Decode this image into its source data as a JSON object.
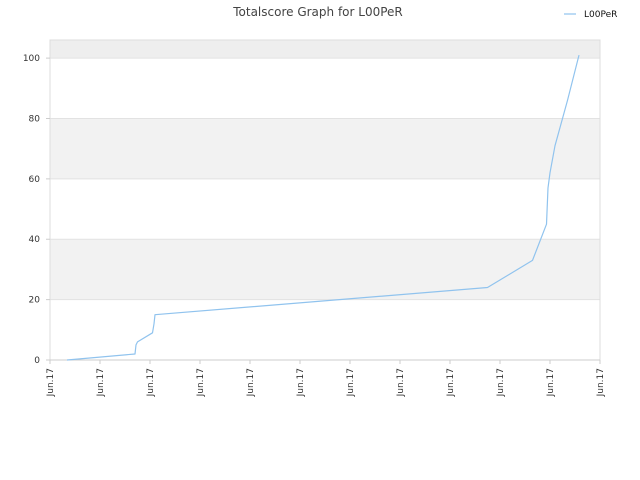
{
  "chart_data": {
    "type": "line",
    "title": "Totalscore Graph for L00PeR",
    "xlabel": "",
    "ylabel": "",
    "ylim": [
      0,
      106
    ],
    "yticks": [
      0,
      20,
      40,
      60,
      80,
      100
    ],
    "xlim": [
      0,
      11
    ],
    "x_tick_labels": [
      "Jun.17",
      "Jun.17",
      "Jun.17",
      "Jun.17",
      "Jun.17",
      "Jun.17",
      "Jun.17",
      "Jun.17",
      "Jun.17",
      "Jun.17",
      "Jun.17",
      "Jun.17"
    ],
    "grid": true,
    "legend_position": "top-right",
    "series": [
      {
        "name": "L00PeR",
        "color": "#90c3ee",
        "x": [
          0.34,
          1.7,
          1.72,
          1.75,
          2.05,
          2.08,
          2.1,
          8.75,
          9.65,
          9.93,
          9.96,
          10.0,
          10.1,
          10.35,
          10.58
        ],
        "y": [
          0,
          2,
          5,
          6,
          9,
          12,
          15,
          24,
          33,
          45,
          57,
          62,
          71,
          86,
          101
        ]
      }
    ]
  }
}
